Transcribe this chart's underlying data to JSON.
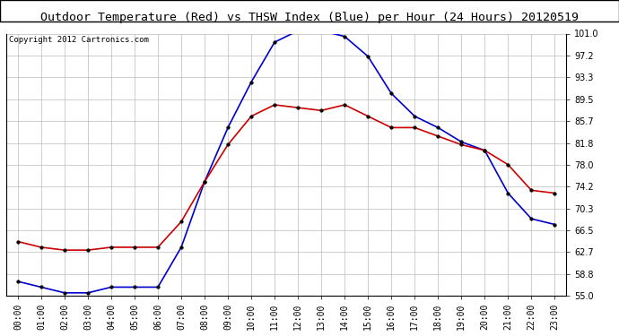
{
  "title": "Outdoor Temperature (Red) vs THSW Index (Blue) per Hour (24 Hours) 20120519",
  "copyright": "Copyright 2012 Cartronics.com",
  "hours": [
    "00:00",
    "01:00",
    "02:00",
    "03:00",
    "04:00",
    "05:00",
    "06:00",
    "07:00",
    "08:00",
    "09:00",
    "10:00",
    "11:00",
    "12:00",
    "13:00",
    "14:00",
    "15:00",
    "16:00",
    "17:00",
    "18:00",
    "19:00",
    "20:00",
    "21:00",
    "22:00",
    "23:00"
  ],
  "red_temp": [
    64.5,
    63.5,
    63.0,
    63.0,
    63.5,
    63.5,
    63.5,
    68.0,
    75.0,
    81.5,
    86.5,
    88.5,
    88.0,
    87.5,
    88.5,
    86.5,
    84.5,
    84.5,
    83.0,
    81.5,
    80.5,
    78.0,
    73.5,
    73.0
  ],
  "blue_thsw": [
    57.5,
    56.5,
    55.5,
    55.5,
    56.5,
    56.5,
    56.5,
    63.5,
    75.0,
    84.5,
    92.5,
    99.5,
    101.5,
    101.5,
    100.5,
    97.0,
    90.5,
    86.5,
    84.5,
    82.0,
    80.5,
    73.0,
    68.5,
    67.5
  ],
  "ylim": [
    55.0,
    101.0
  ],
  "yticks": [
    55.0,
    58.8,
    62.7,
    66.5,
    70.3,
    74.2,
    78.0,
    81.8,
    85.7,
    89.5,
    93.3,
    97.2,
    101.0
  ],
  "red_color": "#cc0000",
  "blue_color": "#0000cc",
  "bg_color": "#ffffff",
  "plot_bg_color": "#ffffff",
  "grid_color": "#bbbbbb",
  "title_fontsize": 9.5,
  "copyright_fontsize": 6.5,
  "tick_fontsize": 7
}
